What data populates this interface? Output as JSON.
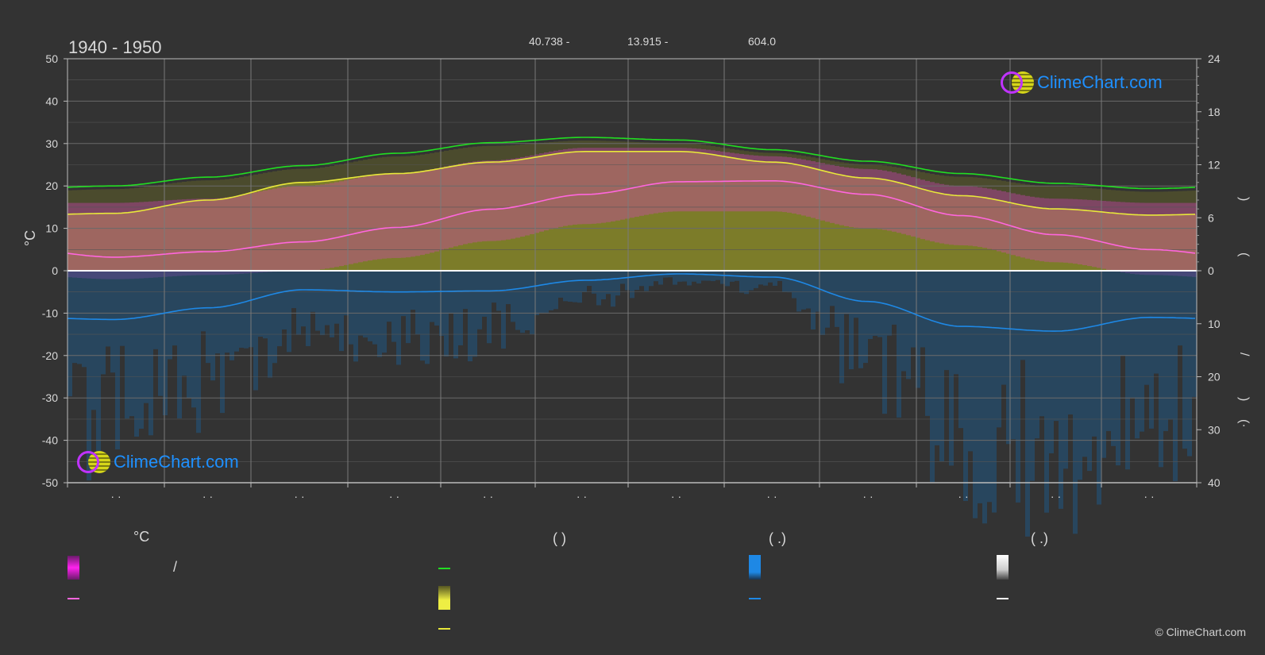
{
  "header": {
    "period": "1940 - 1950",
    "lat": "40.738 -",
    "lon": "13.915 -",
    "elevation": "604.0"
  },
  "axes": {
    "left_unit": "°C",
    "left_ticks": [
      "50",
      "40",
      "30",
      "20",
      "10",
      "0",
      "-10",
      "-20",
      "-30",
      "-40",
      "-50"
    ],
    "right_upper_ticks": [
      "24",
      "18",
      "12",
      "6",
      "0"
    ],
    "right_lower_ticks": [
      "10",
      "20",
      "30",
      "40"
    ],
    "month_labels": [
      "· ·",
      "· ·",
      "· ·",
      "· ·",
      "· ·",
      "· ·",
      "· ·",
      "· ·",
      "· ·",
      "· ·",
      "· ·",
      "· ·"
    ],
    "right_glyphs": [
      ")",
      "(",
      "/",
      ")",
      "(·"
    ]
  },
  "logo": {
    "text": "ClimeChart.com"
  },
  "copyright": "© ClimeChart.com",
  "legend": {
    "col1_title": "°C",
    "col1_slash": "/",
    "col2_title": "(          )",
    "col3_title": "(   .)",
    "col4_title": "(   .)"
  },
  "colors": {
    "background": "#333333",
    "daylight": "#22dd22",
    "sunshine": "#e8e83a",
    "temp_mean": "#ff66dd",
    "temp_range": "#e040c8",
    "precip": "#1e88e5",
    "snow": "#ffffff",
    "logo_text": "#1e90ff"
  },
  "chart_data": {
    "type": "line",
    "months": 12,
    "ylim": [
      -50,
      50
    ],
    "y2_hours_lim": [
      0,
      24
    ],
    "y2_precip_lim": [
      40,
      0
    ],
    "series": [
      {
        "key": "daylight",
        "unit": "h",
        "values": [
          9.6,
          10.6,
          11.9,
          13.3,
          14.5,
          15.1,
          14.8,
          13.7,
          12.4,
          11.0,
          9.9,
          9.3
        ]
      },
      {
        "key": "sunshine",
        "unit": "h",
        "values": [
          6.5,
          8.0,
          10.0,
          11.0,
          12.3,
          13.5,
          13.5,
          12.3,
          10.5,
          8.5,
          7.0,
          6.3
        ]
      },
      {
        "key": "temp_mean",
        "unit": "°C",
        "values": [
          3.2,
          4.5,
          6.8,
          10.2,
          14.5,
          18.0,
          21.0,
          21.2,
          18.0,
          13.0,
          8.5,
          5.0
        ]
      },
      {
        "key": "temp_max",
        "unit": "°C",
        "values": [
          16,
          17,
          20,
          23,
          26,
          29,
          29,
          27,
          24,
          20,
          17,
          16
        ]
      },
      {
        "key": "temp_min",
        "unit": "°C",
        "values": [
          -2,
          -1,
          0,
          3,
          7,
          11,
          14,
          14,
          10,
          6,
          2,
          -1
        ]
      },
      {
        "key": "precip",
        "unit": "mm",
        "values": [
          9.2,
          7.0,
          3.6,
          4.0,
          3.8,
          1.8,
          0.6,
          1.2,
          5.8,
          10.5,
          11.4,
          8.8
        ]
      }
    ]
  }
}
